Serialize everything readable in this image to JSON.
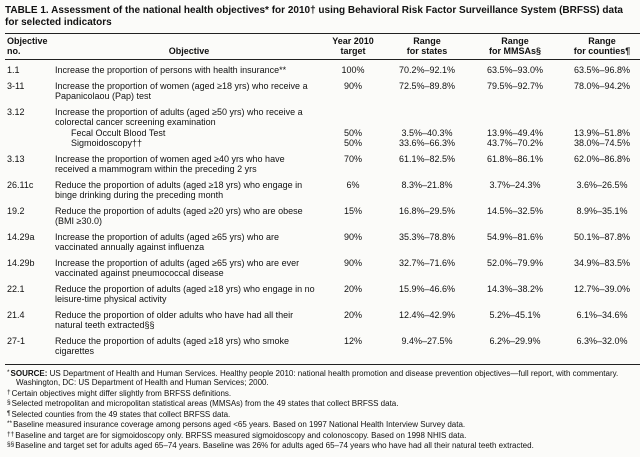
{
  "title": "TABLE 1. Assessment of the national health objectives* for 2010† using Behavioral Risk Factor Surveillance System (BRFSS) data for selected indicators",
  "table": {
    "headers": [
      {
        "lines": [
          "Objective no."
        ]
      },
      {
        "lines": [
          "Objective"
        ]
      },
      {
        "lines": [
          "Year 2010",
          "target"
        ]
      },
      {
        "lines": [
          "Range",
          "for states"
        ]
      },
      {
        "lines": [
          "Range",
          "for MMSAs§"
        ]
      },
      {
        "lines": [
          "Range",
          "for counties¶"
        ]
      }
    ],
    "rows": [
      {
        "no": "1.1",
        "objective": "Increase the proportion of persons with health insurance**",
        "target": "100%",
        "states": "70.2%–92.1%",
        "mmsas": "63.5%–93.0%",
        "counties": "63.5%–96.8%"
      },
      {
        "no": "3-11",
        "objective": "Increase the proportion of women (aged ≥18 yrs) who receive a Papanicolaou (Pap) test",
        "target": "90%",
        "states": "72.5%–89.8%",
        "mmsas": "79.5%–92.7%",
        "counties": "78.0%–94.2%"
      },
      {
        "no": "3.12",
        "objective": "Increase the proportion of adults (aged ≥50 yrs) who receive a colorectal cancer screening examination",
        "target": "",
        "states": "",
        "mmsas": "",
        "counties": "",
        "sub": [
          {
            "label": "Fecal Occult Blood Test",
            "target": "50%",
            "states": "3.5%–40.3%",
            "mmsas": "13.9%–49.4%",
            "counties": "13.9%–51.8%"
          },
          {
            "label": "Sigmoidoscopy††",
            "target": "50%",
            "states": "33.6%–66.3%",
            "mmsas": "43.7%–70.2%",
            "counties": "38.0%–74.5%"
          }
        ]
      },
      {
        "no": "3.13",
        "objective": "Increase the proportion of women aged ≥40 yrs who have received a mammogram within the preceding 2 yrs",
        "target": "70%",
        "states": "61.1%–82.5%",
        "mmsas": "61.8%–86.1%",
        "counties": "62.0%–86.8%"
      },
      {
        "no": "26.11c",
        "objective": "Reduce the proportion of adults (aged ≥18 yrs) who engage in binge drinking during the preceding month",
        "target": "6%",
        "states": "8.3%–21.8%",
        "mmsas": "3.7%–24.3%",
        "counties": "3.6%–26.5%"
      },
      {
        "no": "19.2",
        "objective": "Reduce the proportion of adults (aged ≥20 yrs) who are obese (BMI ≥30.0)",
        "target": "15%",
        "states": "16.8%–29.5%",
        "mmsas": "14.5%–32.5%",
        "counties": "8.9%–35.1%"
      },
      {
        "no": "14.29a",
        "objective": "Increase the proportion of adults (aged ≥65 yrs) who are vaccinated annually against influenza",
        "target": "90%",
        "states": "35.3%–78.8%",
        "mmsas": "54.9%–81.6%",
        "counties": "50.1%–87.8%"
      },
      {
        "no": "14.29b",
        "objective": "Increase the proportion of adults (aged ≥65 yrs) who are ever vaccinated against pneumococcal disease",
        "target": "90%",
        "states": "32.7%–71.6%",
        "mmsas": "52.0%–79.9%",
        "counties": "34.9%–83.5%"
      },
      {
        "no": "22.1",
        "objective": "Reduce the proportion of adults (aged ≥18 yrs) who engage in no leisure-time physical activity",
        "target": "20%",
        "states": "15.9%–46.6%",
        "mmsas": "14.3%–38.2%",
        "counties": "12.7%–39.0%"
      },
      {
        "no": "21.4",
        "objective": "Reduce the proportion of older adults who have had all their natural teeth extracted§§",
        "target": "20%",
        "states": "12.4%–42.9%",
        "mmsas": "5.2%–45.1%",
        "counties": "6.1%–34.6%"
      },
      {
        "no": "27-1",
        "objective": "Reduce the proportion of adults (aged ≥18 yrs) who smoke cigarettes",
        "target": "12%",
        "states": "9.4%–27.5%",
        "mmsas": "6.2%–29.9%",
        "counties": "6.3%–32.0%"
      }
    ]
  },
  "footnotes": [
    {
      "marker": "*",
      "bold_prefix": "SOURCE:",
      "text": "US Department of Health and Human Services. Healthy people 2010: national health promotion and disease prevention objectives—full report, with commentary. Washington, DC: US Department of Health and Human Services; 2000."
    },
    {
      "marker": "†",
      "text": "Certain objectives might differ slightly from BRFSS definitions."
    },
    {
      "marker": "§",
      "text": "Selected metropolitan and micropolitan statistical areas (MMSAs) from the 49 states that collect BRFSS data."
    },
    {
      "marker": "¶",
      "text": "Selected counties from the 49 states that collect BRFSS data."
    },
    {
      "marker": "**",
      "text": "Baseline measured insurance coverage among persons aged <65 years. Based on 1997 National Health Interview Survey data."
    },
    {
      "marker": "††",
      "text": "Baseline and target are for sigmoidoscopy only. BRFSS measured sigmoidoscopy and colonoscopy. Based on 1998 NHIS data."
    },
    {
      "marker": "§§",
      "text": "Baseline and target set for adults aged 65–74 years. Baseline was 26% for adults aged 65–74 years who have had all their natural teeth extracted."
    }
  ]
}
